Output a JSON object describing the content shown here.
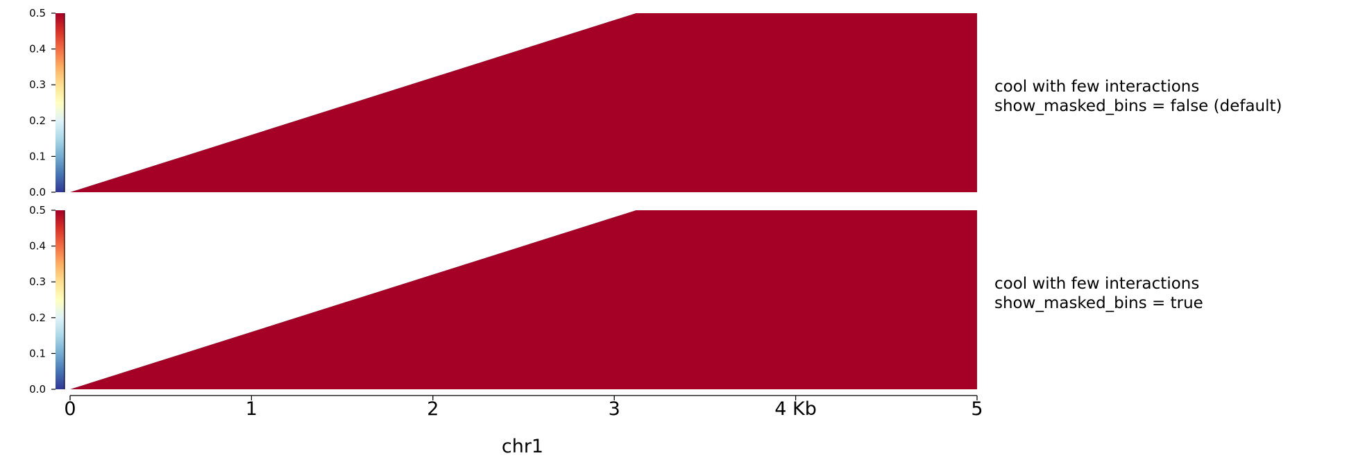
{
  "colors": {
    "fill": "#a50026",
    "colormap": [
      "#313695",
      "#4575b4",
      "#74add1",
      "#abd9e9",
      "#e0f3f8",
      "#ffffbf",
      "#fee090",
      "#fdae61",
      "#f46d43",
      "#d73027",
      "#a50026"
    ]
  },
  "chart_data": [
    {
      "type": "heatmap",
      "track_label": [
        "cool with few interactions",
        "show_masked_bins = false (default)"
      ],
      "colorbar": {
        "ticks": [
          "0.0",
          "0.1",
          "0.2",
          "0.3",
          "0.4",
          "0.5"
        ],
        "values": [
          0,
          0.1,
          0.2,
          0.3,
          0.4,
          0.5
        ],
        "range": [
          0,
          0.5
        ]
      },
      "region": {
        "x": [
          0,
          3.12,
          5
        ],
        "depth": [
          0,
          1,
          1
        ]
      },
      "value": 0.5
    },
    {
      "type": "heatmap",
      "track_label": [
        "cool with few interactions",
        "show_masked_bins = true"
      ],
      "colorbar": {
        "ticks": [
          "0.0",
          "0.1",
          "0.2",
          "0.3",
          "0.4",
          "0.5"
        ],
        "values": [
          0,
          0.1,
          0.2,
          0.3,
          0.4,
          0.5
        ],
        "range": [
          0,
          0.5
        ]
      },
      "region": {
        "x": [
          0,
          3.12,
          5
        ],
        "depth": [
          0,
          1,
          1
        ]
      },
      "value": 0.5
    }
  ],
  "x_axis": {
    "range": [
      0,
      5
    ],
    "ticks": [
      0,
      1,
      2,
      3,
      4,
      5
    ],
    "tick_labels": [
      "0",
      "1",
      "2",
      "3",
      "4 Kb",
      "5"
    ],
    "label": "chr1"
  }
}
